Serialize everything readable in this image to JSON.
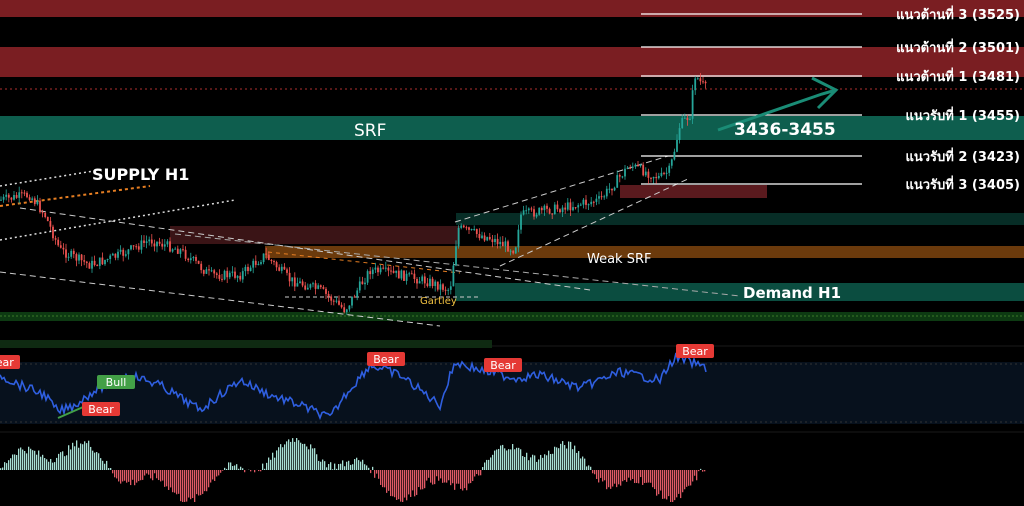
{
  "chart_data": {
    "type": "candlestick",
    "title": "",
    "price_range": [
      3340,
      3530
    ],
    "levels": [
      {
        "label": "แนวต้านที่ 3 (3525)",
        "price": 3525
      },
      {
        "label": "แนวต้านที่ 2 (3501)",
        "price": 3501
      },
      {
        "label": "แนวต้านที่ 1 (3481)",
        "price": 3481
      },
      {
        "label": "แนวรับที่ 1 (3455)",
        "price": 3455
      },
      {
        "label": "แนวรับที่ 2 (3423)",
        "price": 3423
      },
      {
        "label": "แนวรับที่ 3 (3405)",
        "price": 3405
      }
    ],
    "zones": [
      {
        "label": "SRF",
        "color": "#0e5e4e"
      },
      {
        "label": "Weak SRF",
        "color": "#6b3a0c"
      },
      {
        "label": "Demand H1",
        "color": "#0b4d40"
      },
      {
        "label": "SUPPLY H1",
        "color": "#e67e22"
      }
    ],
    "annotations": {
      "target_range": "3436-3455",
      "pattern": "Gartley"
    },
    "rsi_panel": {
      "signals": [
        "Bear",
        "Bull",
        "Bear",
        "Bear",
        "Bear",
        "Bear"
      ]
    }
  },
  "colors": {
    "bull": "#26a69a",
    "bear": "#ef5350",
    "resistance_zone": "#7a1e22",
    "rsi_line": "#2f5fe0",
    "label_bear": "#e53935",
    "label_bull": "#43a047",
    "levels": "#ffffff"
  }
}
